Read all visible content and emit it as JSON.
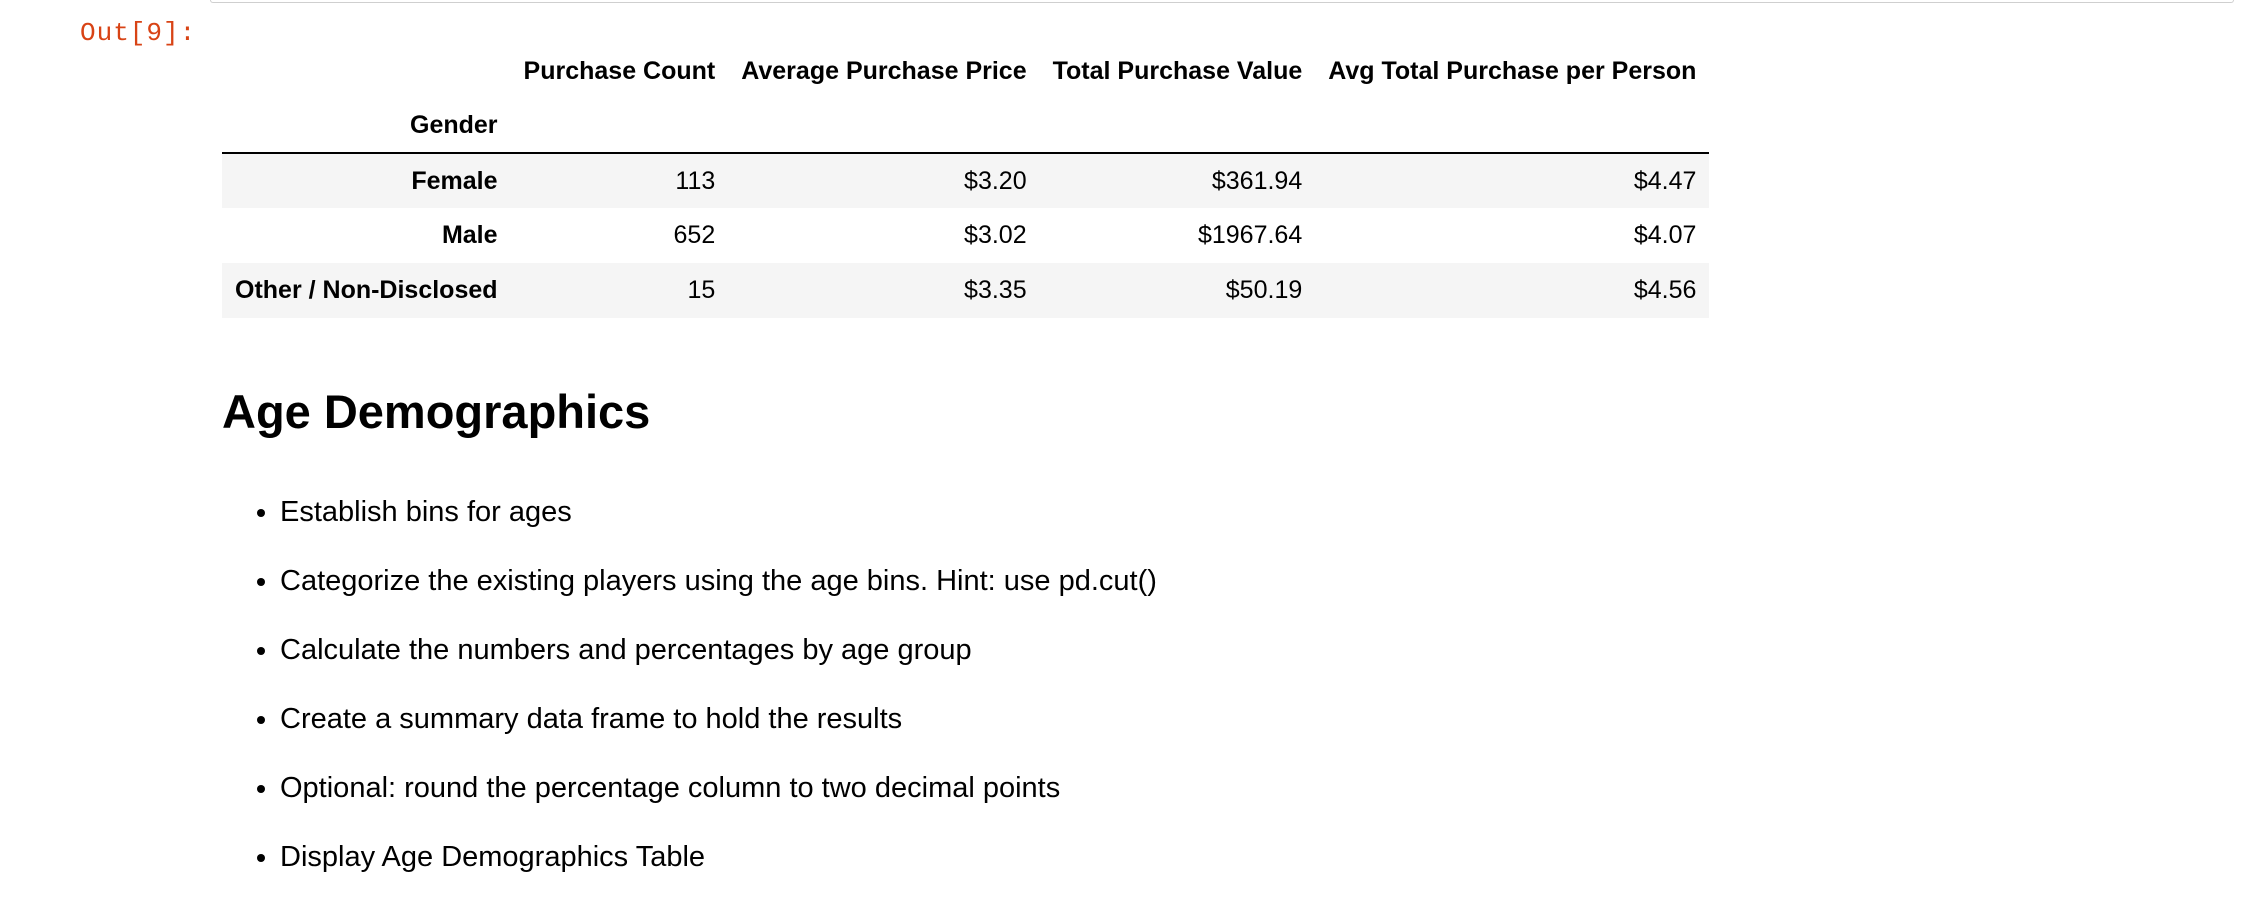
{
  "output": {
    "prompt": "Out[9]:"
  },
  "table": {
    "columns": [
      "Purchase Count",
      "Average Purchase Price",
      "Total Purchase Value",
      "Avg Total Purchase per Person"
    ],
    "index_name": "Gender",
    "rows": [
      {
        "label": "Female",
        "values": [
          "113",
          "$3.20",
          "$361.94",
          "$4.47"
        ]
      },
      {
        "label": "Male",
        "values": [
          "652",
          "$3.02",
          "$1967.64",
          "$4.07"
        ]
      },
      {
        "label": "Other / Non-Disclosed",
        "values": [
          "15",
          "$3.35",
          "$50.19",
          "$4.56"
        ]
      }
    ]
  },
  "section": {
    "heading": "Age Demographics",
    "bullets": [
      "Establish bins for ages",
      "Categorize the existing players using the age bins. Hint: use pd.cut()",
      "Calculate the numbers and percentages by age group",
      "Create a summary data frame to hold the results",
      "Optional: round the percentage column to two decimal points",
      "Display Age Demographics Table"
    ]
  }
}
